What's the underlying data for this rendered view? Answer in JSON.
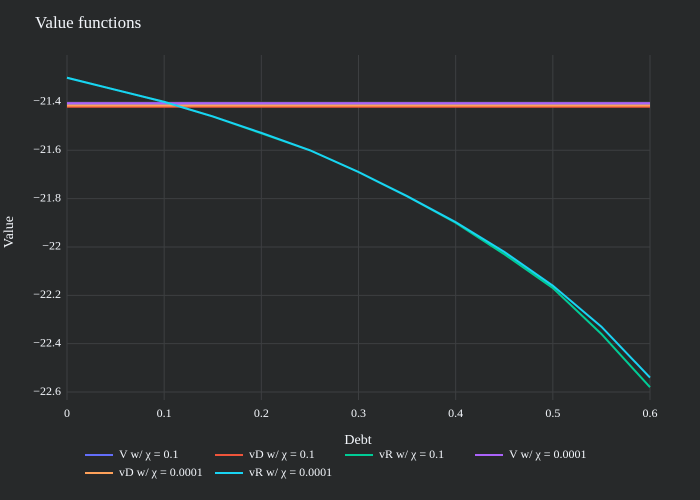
{
  "chart_data": {
    "type": "line",
    "title": "Value functions",
    "x_label": "Debt",
    "y_label": "Value",
    "x": [
      0,
      0.05,
      0.1,
      0.15,
      0.2,
      0.25,
      0.3,
      0.35,
      0.4,
      0.45,
      0.5,
      0.55,
      0.6
    ],
    "series": [
      {
        "name": "V w/ χ = 0.1",
        "color": "#636efa",
        "values": [
          -21.41,
          -21.41,
          -21.41,
          -21.41,
          -21.41,
          -21.41,
          -21.41,
          -21.41,
          -21.41,
          -21.41,
          -21.41,
          -21.41,
          -21.41
        ]
      },
      {
        "name": "vD w/ χ = 0.1",
        "color": "#ef553b",
        "values": [
          -21.42,
          -21.42,
          -21.42,
          -21.42,
          -21.42,
          -21.42,
          -21.42,
          -21.42,
          -21.42,
          -21.42,
          -21.42,
          -21.42,
          -21.42
        ]
      },
      {
        "name": "vR w/ χ = 0.1",
        "color": "#00cc96",
        "values": [
          -21.3,
          -21.35,
          -21.4,
          -21.46,
          -21.53,
          -21.6,
          -21.69,
          -21.79,
          -21.9,
          -22.03,
          -22.17,
          -22.36,
          -22.58
        ]
      },
      {
        "name": "V w/ χ = 0.0001",
        "color": "#ab63fa",
        "values": [
          -21.405,
          -21.405,
          -21.405,
          -21.405,
          -21.405,
          -21.405,
          -21.405,
          -21.405,
          -21.405,
          -21.405,
          -21.405,
          -21.405,
          -21.405
        ]
      },
      {
        "name": "vD w/ χ = 0.0001",
        "color": "#ffa15a",
        "values": [
          -21.415,
          -21.415,
          -21.415,
          -21.415,
          -21.415,
          -21.415,
          -21.415,
          -21.415,
          -21.415,
          -21.415,
          -21.415,
          -21.415,
          -21.415
        ]
      },
      {
        "name": "vR w/ χ = 0.0001",
        "color": "#19d3f3",
        "values": [
          -21.3,
          -21.35,
          -21.4,
          -21.46,
          -21.528,
          -21.6,
          -21.69,
          -21.79,
          -21.897,
          -22.02,
          -22.16,
          -22.33,
          -22.54
        ]
      }
    ],
    "xlim": [
      0,
      0.6
    ],
    "ylim": [
      -22.633,
      -21.206
    ],
    "xticks": [
      0,
      0.1,
      0.2,
      0.3,
      0.4,
      0.5,
      0.6
    ],
    "yticks": [
      {
        "value": -21.4,
        "label": "−21.4"
      },
      {
        "value": -21.6,
        "label": "−21.6"
      },
      {
        "value": -21.8,
        "label": "−21.8"
      },
      {
        "value": -22,
        "label": "−22"
      },
      {
        "value": -22.2,
        "label": "−22.2"
      },
      {
        "value": -22.4,
        "label": "−22.4"
      },
      {
        "value": -22.6,
        "label": "−22.6"
      }
    ],
    "grid": true,
    "legend": "bottom"
  }
}
